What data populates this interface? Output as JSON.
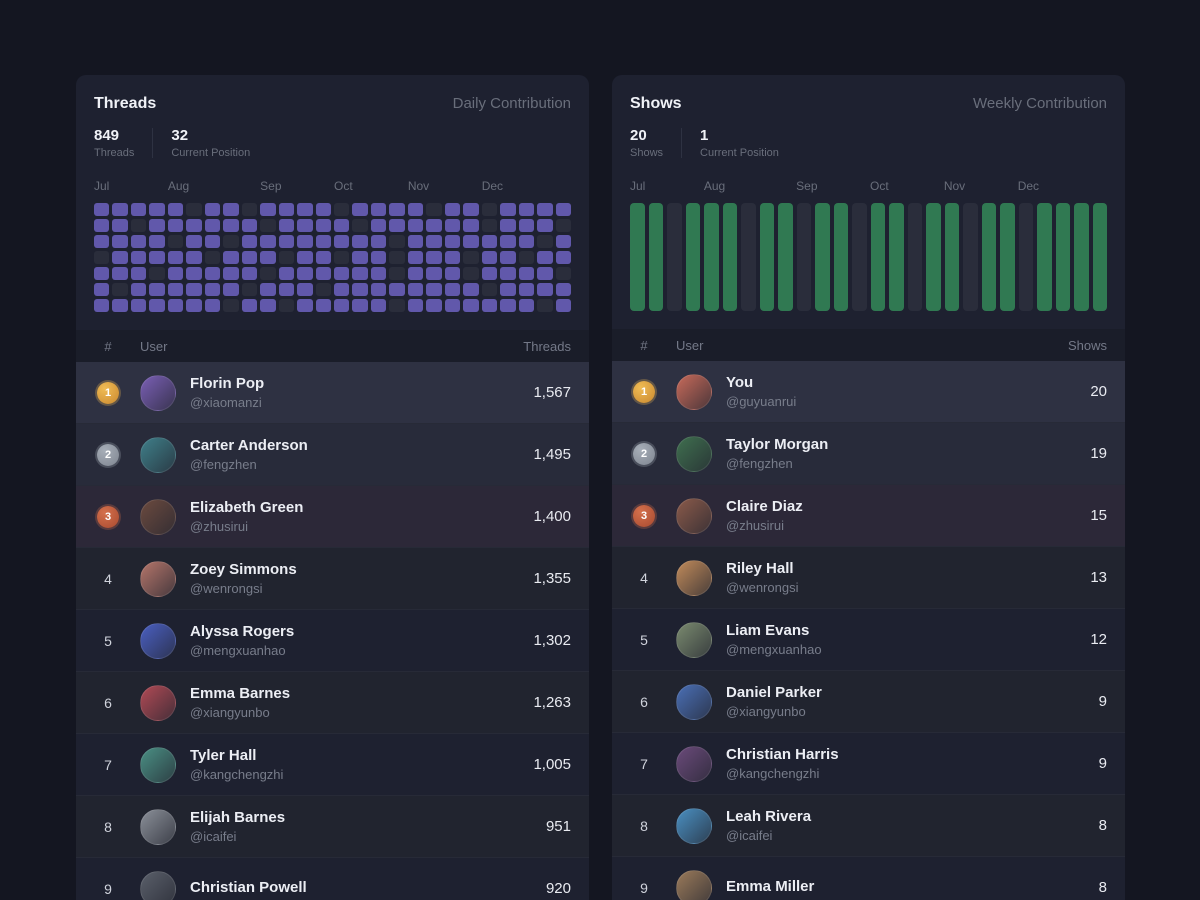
{
  "colors": {
    "page_bg": "#141621",
    "panel_bg": "#1e2130",
    "gold": "#e0a33c",
    "silver": "#9aa0ab",
    "bronze": "#c05b3e"
  },
  "panels": [
    {
      "title": "Threads",
      "subtitle": "Daily Contribution",
      "stats": [
        {
          "value": "849",
          "label": "Threads"
        },
        {
          "value": "32",
          "label": "Current Position"
        }
      ],
      "months": [
        "Jul",
        "Aug",
        "Sep",
        "Oct",
        "Nov",
        "Dec"
      ],
      "grid_type": "daily",
      "cell_on_color": "#6158ab",
      "cell_off_color": "#2a2d3b",
      "grid": [
        "11111011011110111101101111",
        "11011111101111011111101110",
        "11110110111111110111111101",
        "01111101110110110111011011",
        "11101111101111110111011110",
        "10111111011101111111101111",
        "11111110110111110111111101"
      ],
      "table": {
        "rank_header": "#",
        "user_header": "User",
        "value_header": "Threads",
        "rows": [
          {
            "rank": 1,
            "name": "Florin Pop",
            "handle": "@xiaomanzi",
            "value": "1,567",
            "avatar": "#7a5fb5"
          },
          {
            "rank": 2,
            "name": "Carter Anderson",
            "handle": "@fengzhen",
            "value": "1,495",
            "avatar": "#3f7f8a"
          },
          {
            "rank": 3,
            "name": "Elizabeth Green",
            "handle": "@zhusirui",
            "value": "1,400",
            "avatar": "#6b4a3f"
          },
          {
            "rank": 4,
            "name": "Zoey Simmons",
            "handle": "@wenrongsi",
            "value": "1,355",
            "avatar": "#b4756a"
          },
          {
            "rank": 5,
            "name": "Alyssa Rogers",
            "handle": "@mengxuanhao",
            "value": "1,302",
            "avatar": "#4a5fc1"
          },
          {
            "rank": 6,
            "name": "Emma Barnes",
            "handle": "@xiangyunbo",
            "value": "1,263",
            "avatar": "#b04a55"
          },
          {
            "rank": 7,
            "name": "Tyler Hall",
            "handle": "@kangchengzhi",
            "value": "1,005",
            "avatar": "#4a8f84"
          },
          {
            "rank": 8,
            "name": "Elijah Barnes",
            "handle": "@icaifei",
            "value": "951",
            "avatar": "#8a8f98"
          },
          {
            "rank": 9,
            "name": "Christian Powell",
            "handle": "",
            "value": "920",
            "avatar": "#5a5f6a"
          }
        ]
      }
    },
    {
      "title": "Shows",
      "subtitle": "Weekly Contribution",
      "stats": [
        {
          "value": "20",
          "label": "Shows"
        },
        {
          "value": "1",
          "label": "Current Position"
        }
      ],
      "months": [
        "Jul",
        "Aug",
        "Sep",
        "Oct",
        "Nov",
        "Dec"
      ],
      "grid_type": "weekly",
      "cell_on_color": "#307952",
      "cell_off_color": "#2a2d3b",
      "bars": "11011101101101101101101111",
      "table": {
        "rank_header": "#",
        "user_header": "User",
        "value_header": "Shows",
        "rows": [
          {
            "rank": 1,
            "name": "You",
            "handle": "@guyuanrui",
            "value": "20",
            "avatar": "#c76a5a"
          },
          {
            "rank": 2,
            "name": "Taylor Morgan",
            "handle": "@fengzhen",
            "value": "19",
            "avatar": "#3f6f4f"
          },
          {
            "rank": 3,
            "name": "Claire Diaz",
            "handle": "@zhusirui",
            "value": "15",
            "avatar": "#8a5a4a"
          },
          {
            "rank": 4,
            "name": "Riley Hall",
            "handle": "@wenrongsi",
            "value": "13",
            "avatar": "#c08a5a"
          },
          {
            "rank": 5,
            "name": "Liam Evans",
            "handle": "@mengxuanhao",
            "value": "12",
            "avatar": "#7a8a6f"
          },
          {
            "rank": 6,
            "name": "Daniel Parker",
            "handle": "@xiangyunbo",
            "value": "9",
            "avatar": "#4a6fb5"
          },
          {
            "rank": 7,
            "name": "Christian Harris",
            "handle": "@kangchengzhi",
            "value": "9",
            "avatar": "#6a4a7a"
          },
          {
            "rank": 8,
            "name": "Leah Rivera",
            "handle": "@icaifei",
            "value": "8",
            "avatar": "#4a8fc1"
          },
          {
            "rank": 9,
            "name": "Emma Miller",
            "handle": "",
            "value": "8",
            "avatar": "#9a7a5a"
          }
        ]
      }
    }
  ]
}
